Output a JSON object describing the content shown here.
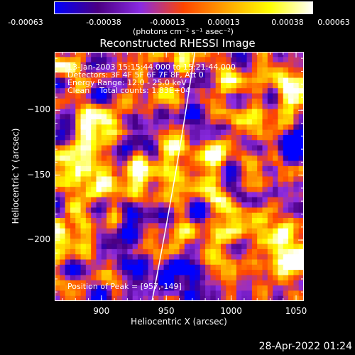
{
  "colorbar": {
    "ticks": [
      "-0.00063",
      "-0.00038",
      "-0.00013",
      "0.00013",
      "0.00038",
      "0.00063"
    ],
    "unit_label": "(photons cm⁻² s⁻¹ asec⁻²)",
    "colormap": [
      "#0000ff",
      "#4b0082",
      "#8a2be2",
      "#ff4500",
      "#ffa500",
      "#ffff00",
      "#ffffff"
    ]
  },
  "chart_data": {
    "type": "heatmap",
    "title": "Reconstructed RHESSI Image",
    "xlabel": "Heliocentric X (arcsec)",
    "ylabel": "Heliocentric Y (arcsec)",
    "xlim": [
      864,
      1056
    ],
    "ylim": [
      -247,
      -55
    ],
    "x_ticks": [
      900,
      950,
      1000,
      1050
    ],
    "y_ticks": [
      -100,
      -150,
      -200
    ],
    "peak_position": [
      957,
      -149
    ],
    "annotations": [
      "13-Jan-2003 15:15:44.000 to 15:21:44.000",
      "Detectors: 3F 4F 5F 6F 7F 8F, Att 0",
      "Energy Range: 12.0 - 25.0 keV",
      "Clean    Total counts: 1.83E+04",
      "Position of Peak = [957,-149]"
    ]
  },
  "footer": {
    "timestamp": "28-Apr-2022 01:24"
  }
}
